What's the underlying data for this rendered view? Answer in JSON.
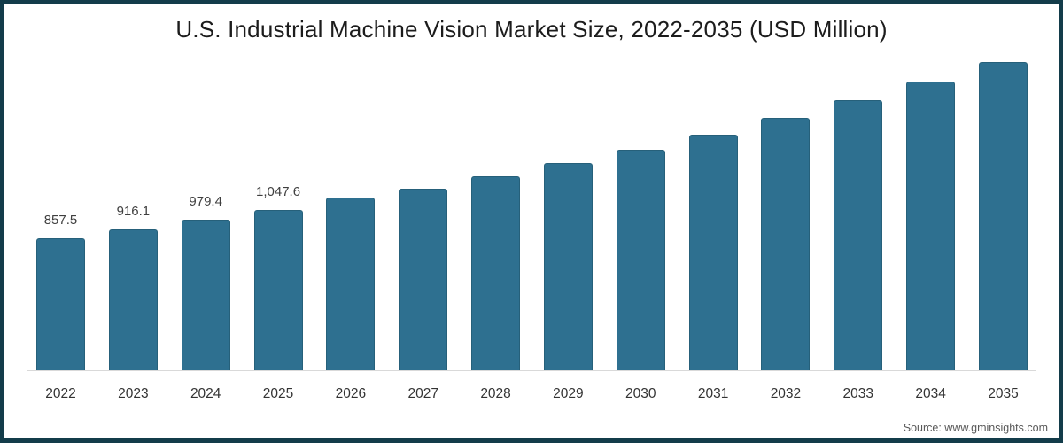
{
  "chart_data": {
    "type": "bar",
    "title": "U.S. Industrial Machine Vision Market Size, 2022-2035 (USD Million)",
    "xlabel": "",
    "ylabel": "",
    "categories": [
      "2022",
      "2023",
      "2024",
      "2025",
      "2026",
      "2027",
      "2028",
      "2029",
      "2030",
      "2031",
      "2032",
      "2033",
      "2034",
      "2035"
    ],
    "values": [
      857.5,
      916.1,
      979.4,
      1047.6,
      1125,
      1185,
      1265,
      1350,
      1440,
      1535,
      1645,
      1760,
      1880,
      2010
    ],
    "shown_value_labels": [
      "857.5",
      "916.1",
      "979.4",
      "1,047.6",
      "",
      "",
      "",
      "",
      "",
      "",
      "",
      "",
      "",
      ""
    ],
    "values_note": "bars 2026-2035 are unlabeled in the image; values estimated from bar heights",
    "ylim": [
      0,
      2100
    ],
    "grid": false,
    "legend_position": "none",
    "bar_color": "#2e7090",
    "bar_border_color": "#26607a",
    "axis_line_color": "#d9d9d9",
    "frame_border_color": "#133c4a"
  },
  "footer": {
    "source": "Source: www.gminsights.com"
  }
}
